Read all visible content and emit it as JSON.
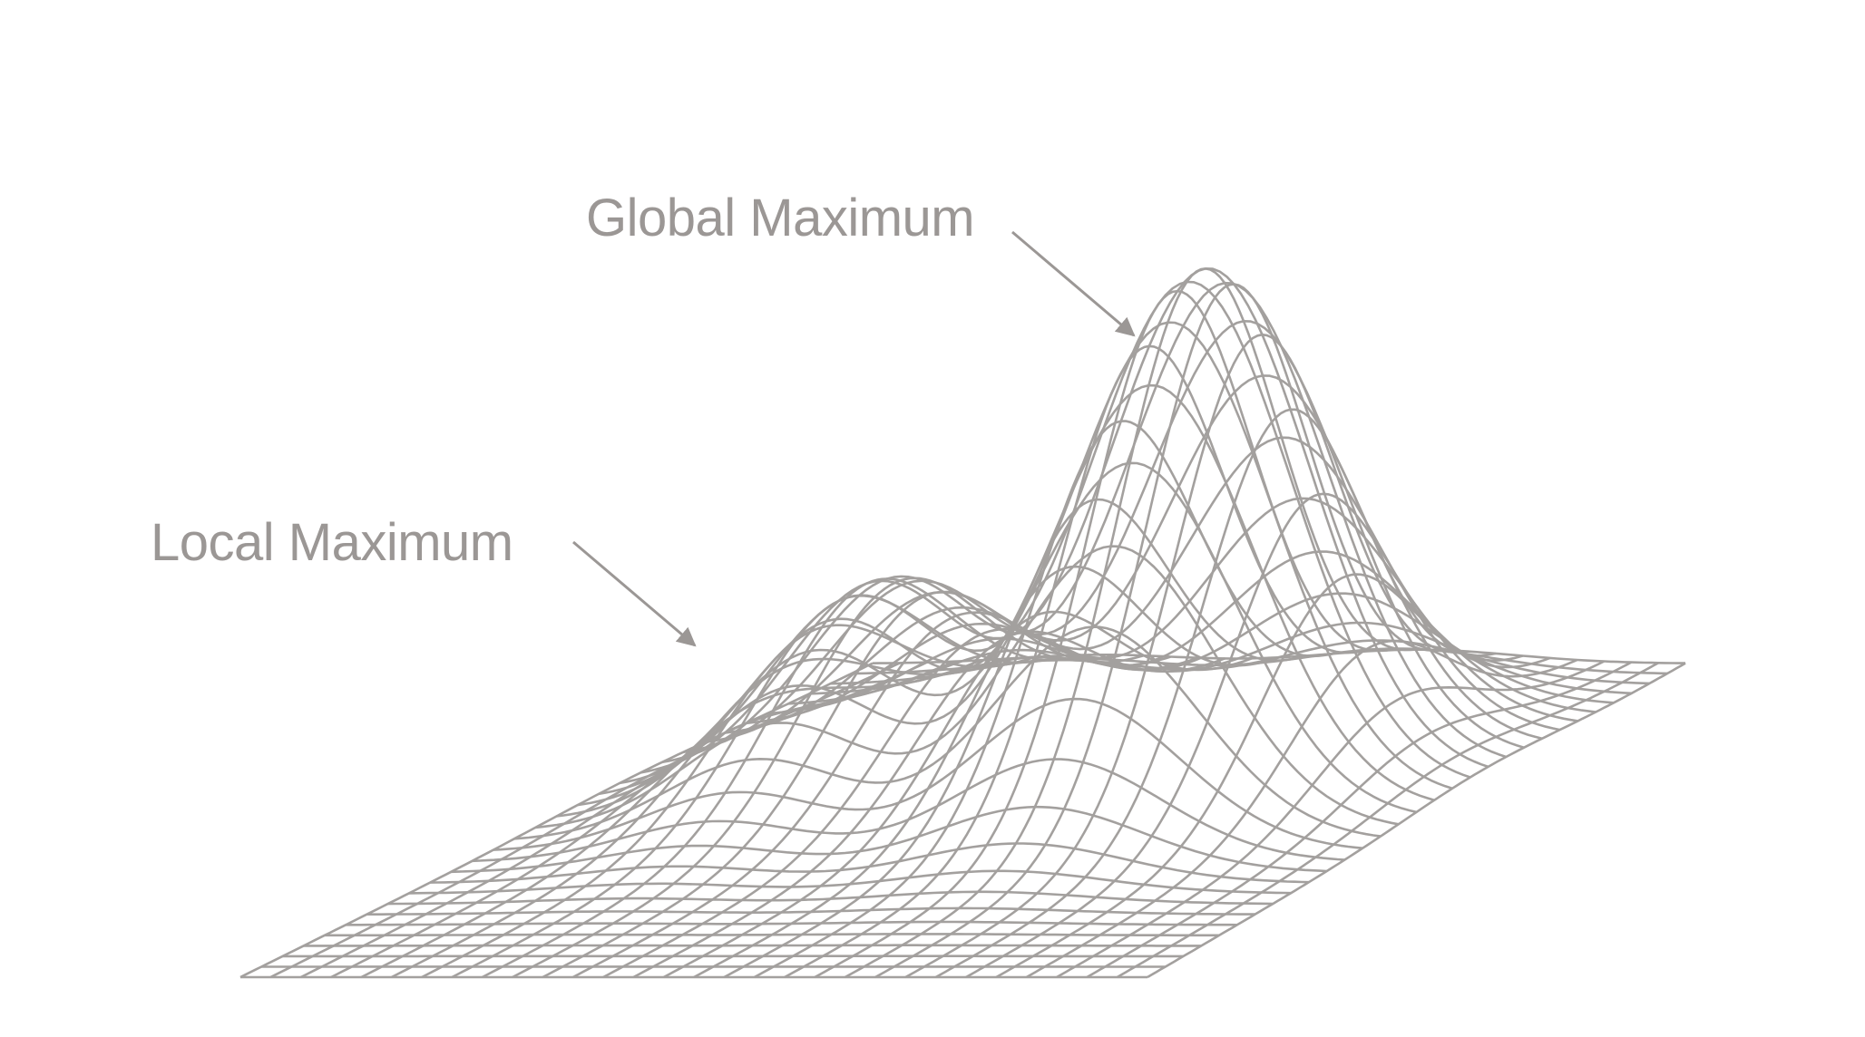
{
  "annotations": {
    "global_maximum": "Global Maximum",
    "local_maximum": "Local Maximum"
  },
  "colors": {
    "mesh": "#a3a09e",
    "label": "#9b9795",
    "background": "#ffffff"
  }
}
